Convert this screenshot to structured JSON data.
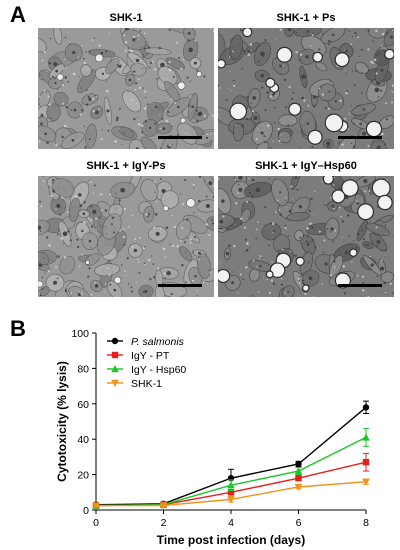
{
  "figure": {
    "panel_a_label": "A",
    "panel_b_label": "B",
    "micrographs": [
      {
        "title": "SHK-1",
        "texture": "normal"
      },
      {
        "title": "SHK-1 + Ps",
        "texture": "infected"
      },
      {
        "title": "SHK-1 + IgY-Ps",
        "texture": "normal"
      },
      {
        "title": "SHK-1 + IgY–Hsp60",
        "texture": "infected"
      }
    ]
  },
  "chart_data": {
    "type": "line",
    "xlabel": "Time post infection (days)",
    "ylabel": "Cytotoxicity (% lysis)",
    "xlim": [
      0,
      8
    ],
    "ylim": [
      0,
      100
    ],
    "xticks": [
      0,
      2,
      4,
      6,
      8
    ],
    "yticks": [
      0,
      20,
      40,
      60,
      80,
      100
    ],
    "x": [
      0,
      2,
      4,
      6,
      8
    ],
    "grid": false,
    "legend_position": "top-left",
    "series": [
      {
        "name": "P. salmonis",
        "italic": true,
        "color": "#000000",
        "marker": "circle",
        "values": [
          3,
          3.5,
          18,
          26,
          58
        ],
        "errors": [
          0.5,
          0.5,
          5,
          1.5,
          3.5
        ]
      },
      {
        "name": "IgY - PT",
        "italic": false,
        "color": "#e8201a",
        "marker": "square",
        "values": [
          2.5,
          3,
          10,
          18,
          27
        ],
        "errors": [
          0.5,
          0.5,
          3,
          1.5,
          5
        ]
      },
      {
        "name": "IgY - Hsp60",
        "italic": false,
        "color": "#1dc62a",
        "marker": "triangle-up",
        "values": [
          2.5,
          3,
          14,
          22,
          41
        ],
        "errors": [
          0.5,
          0.5,
          3,
          2,
          5
        ]
      },
      {
        "name": "SHK-1",
        "italic": false,
        "color": "#f3921b",
        "marker": "triangle-down",
        "values": [
          2.5,
          2.5,
          6,
          13,
          16
        ],
        "errors": [
          0.5,
          0.5,
          1.5,
          1,
          1.5
        ]
      }
    ]
  }
}
